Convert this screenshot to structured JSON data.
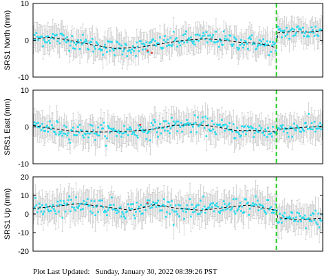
{
  "footer": {
    "label": "Plot Last Updated:",
    "timestamp": "Sunday, January 30, 2022 08:39:26 PST"
  },
  "colors": {
    "point": "#22dcf0",
    "outlier": "#dd3333",
    "errorbar": "#c4c4c4",
    "trend": "#000000",
    "offset_line": "#22cc22"
  },
  "chart_data": [
    {
      "type": "scatter",
      "ylabel": "SRS1 North (mm)",
      "ylim": [
        -10,
        10
      ],
      "yticks": [
        10,
        0,
        -10
      ],
      "offset_at": 0.84,
      "trend": [
        {
          "x": 0.0,
          "y": 0.4
        },
        {
          "x": 0.06,
          "y": 0.8
        },
        {
          "x": 0.12,
          "y": 0.1
        },
        {
          "x": 0.2,
          "y": -1.2
        },
        {
          "x": 0.28,
          "y": -2.2
        },
        {
          "x": 0.36,
          "y": -2.0
        },
        {
          "x": 0.44,
          "y": -1.0
        },
        {
          "x": 0.52,
          "y": 0.0
        },
        {
          "x": 0.6,
          "y": 0.4
        },
        {
          "x": 0.66,
          "y": 0.0
        },
        {
          "x": 0.72,
          "y": -0.6
        },
        {
          "x": 0.78,
          "y": -0.8
        },
        {
          "x": 0.84,
          "y": -2.0
        },
        {
          "x": 0.845,
          "y": 2.0
        },
        {
          "x": 0.9,
          "y": 2.4
        },
        {
          "x": 0.95,
          "y": 2.2
        },
        {
          "x": 1.0,
          "y": 2.6
        }
      ],
      "scatter_sd": 2.0,
      "errbar": 3.2,
      "outliers": [
        {
          "x": 0.395,
          "y": -2.8
        },
        {
          "x": 0.41,
          "y": -3.4
        }
      ]
    },
    {
      "type": "scatter",
      "ylabel": "SRS1 East (mm)",
      "ylim": [
        -10,
        10
      ],
      "yticks": [
        10,
        0,
        -10
      ],
      "offset_at": 0.84,
      "trend": [
        {
          "x": 0.0,
          "y": 0.4
        },
        {
          "x": 0.06,
          "y": -0.4
        },
        {
          "x": 0.14,
          "y": -1.2
        },
        {
          "x": 0.24,
          "y": -1.4
        },
        {
          "x": 0.32,
          "y": -1.2
        },
        {
          "x": 0.4,
          "y": -0.8
        },
        {
          "x": 0.48,
          "y": 0.4
        },
        {
          "x": 0.56,
          "y": 0.6
        },
        {
          "x": 0.62,
          "y": 0.2
        },
        {
          "x": 0.7,
          "y": -1.0
        },
        {
          "x": 0.78,
          "y": -1.0
        },
        {
          "x": 0.84,
          "y": -1.4
        },
        {
          "x": 0.845,
          "y": -0.6
        },
        {
          "x": 0.92,
          "y": -0.2
        },
        {
          "x": 1.0,
          "y": 0.2
        }
      ],
      "scatter_sd": 2.0,
      "errbar": 3.4,
      "outliers": [
        {
          "x": 0.37,
          "y": 0.6
        }
      ]
    },
    {
      "type": "scatter",
      "ylabel": "SRS1 Up (mm)",
      "ylim": [
        -20,
        20
      ],
      "yticks": [
        20,
        10,
        0,
        -10,
        -20
      ],
      "offset_at": 0.84,
      "trend": [
        {
          "x": 0.0,
          "y": 3.0
        },
        {
          "x": 0.08,
          "y": 4.2
        },
        {
          "x": 0.16,
          "y": 5.6
        },
        {
          "x": 0.26,
          "y": 3.6
        },
        {
          "x": 0.34,
          "y": 2.0
        },
        {
          "x": 0.42,
          "y": 5.0
        },
        {
          "x": 0.5,
          "y": 3.0
        },
        {
          "x": 0.58,
          "y": 2.0
        },
        {
          "x": 0.66,
          "y": 3.4
        },
        {
          "x": 0.74,
          "y": 4.8
        },
        {
          "x": 0.84,
          "y": 2.0
        },
        {
          "x": 0.845,
          "y": -2.0
        },
        {
          "x": 0.92,
          "y": -3.2
        },
        {
          "x": 1.0,
          "y": -2.2
        }
      ],
      "scatter_sd": 4.2,
      "errbar": 7.0,
      "outliers": [
        {
          "x": 0.395,
          "y": 6.0
        }
      ]
    }
  ]
}
